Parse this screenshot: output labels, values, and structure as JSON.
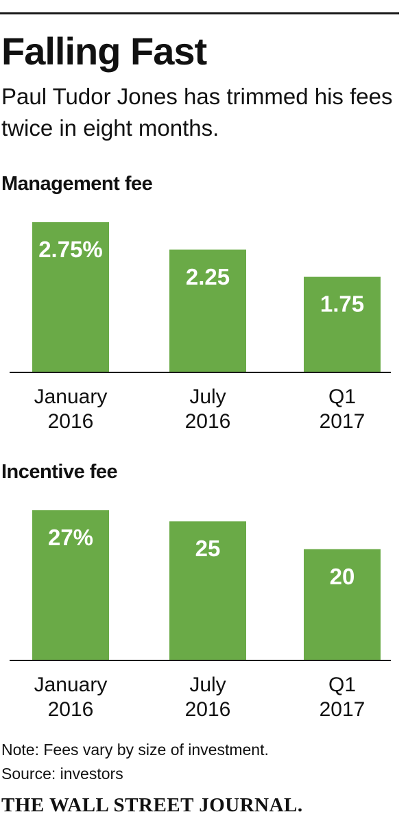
{
  "header": {
    "title": "Falling Fast",
    "subtitle": "Paul Tudor Jones has trimmed his fees twice in eight months."
  },
  "colors": {
    "bar": "#6aaa47",
    "text": "#111111",
    "bar_label": "#ffffff"
  },
  "chart_data": [
    {
      "type": "bar",
      "title": "Management fee",
      "categories": [
        [
          "January",
          "2016"
        ],
        [
          "July",
          "2016"
        ],
        [
          "Q1",
          "2017"
        ]
      ],
      "values": [
        2.75,
        2.25,
        1.75
      ],
      "value_labels": [
        "2.75%",
        "2.25",
        "1.75"
      ],
      "unit": "%",
      "ylim": [
        0,
        2.75
      ],
      "grid": false
    },
    {
      "type": "bar",
      "title": "Incentive fee",
      "categories": [
        [
          "January",
          "2016"
        ],
        [
          "July",
          "2016"
        ],
        [
          "Q1",
          "2017"
        ]
      ],
      "values": [
        27,
        25,
        20
      ],
      "value_labels": [
        "27%",
        "25",
        "20"
      ],
      "unit": "%",
      "ylim": [
        0,
        27
      ],
      "grid": false
    }
  ],
  "footer": {
    "note": "Note: Fees vary by size of investment.",
    "source": "Source: investors",
    "publisher": "THE WALL STREET JOURNAL."
  }
}
